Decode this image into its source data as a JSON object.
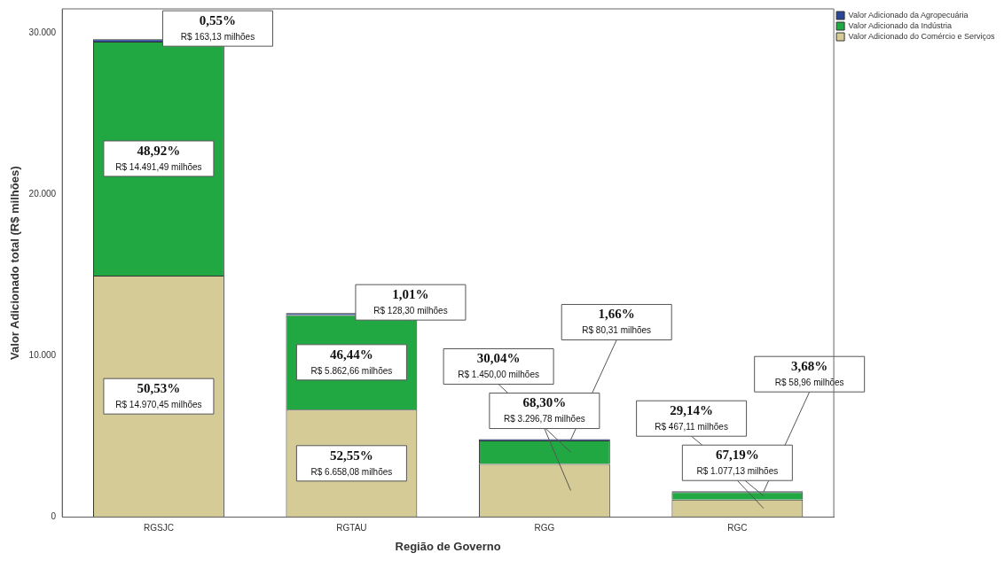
{
  "chart_data": {
    "type": "bar",
    "stacked": true,
    "xlabel": "Região de Governo",
    "ylabel": "Valor Adicionado total (R$ milhões)",
    "categories": [
      "RGSJC",
      "RGTAU",
      "RGG",
      "RGC"
    ],
    "ylim": [
      0,
      31500
    ],
    "yticks": [
      {
        "value": 0,
        "label": "0"
      },
      {
        "value": 10000,
        "label": "10.000"
      },
      {
        "value": 20000,
        "label": "20.000"
      },
      {
        "value": 30000,
        "label": "30.000"
      }
    ],
    "grid": false,
    "legend": "top right",
    "series": [
      {
        "name": "Valor Adicionado do Comércio e Serviços",
        "color": "#d5cb97",
        "values": [
          14970.45,
          6658.08,
          3296.78,
          1077.13
        ],
        "value_labels": [
          "50,53%\nR$ 14.970,45 milhões",
          "52,55%\nR$ 6.658,08 milhões",
          "68,30%\nR$ 3.296,78 milhões",
          "67,19%\nR$ 1.077,13 milhões"
        ]
      },
      {
        "name": "Valor Adicionado da Indústria",
        "color": "#22a843",
        "values": [
          14491.49,
          5862.66,
          1450.0,
          467.11
        ],
        "value_labels": [
          "48,92%\nR$ 14.491,49 milhões",
          "46,44%\nR$ 5.862,66 milhões",
          "30,04%\nR$ 1.450,00 milhões",
          "29,14%\nR$ 467,11 milhões"
        ]
      },
      {
        "name": "Valor Adicionado da Agropecuária",
        "color": "#2a4796",
        "values": [
          163.13,
          128.3,
          80.31,
          58.96
        ],
        "value_labels": [
          "0,55%\nR$ 163,13 milhões",
          "1,01%\nR$ 128,30 milhões",
          "1,66%\nR$ 80,31 milhões",
          "3,68%\nR$ 58,96 milhões"
        ]
      }
    ]
  }
}
